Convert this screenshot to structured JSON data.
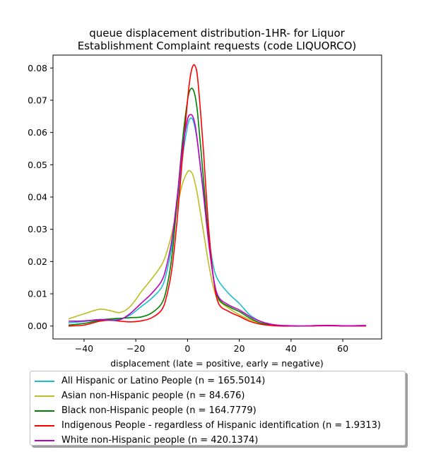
{
  "chart_data": {
    "type": "line",
    "title": "queue displacement distribution-1HR-  for Liquor\nEstablishment Complaint  requests (code LIQUORCO)",
    "xlabel": "displacement (late = positive, early = negative)",
    "ylabel": "",
    "xlim": [
      -52,
      75
    ],
    "ylim": [
      -0.004,
      0.084
    ],
    "xticks": [
      -40,
      -20,
      0,
      20,
      40,
      60
    ],
    "yticks": [
      0.0,
      0.01,
      0.02,
      0.03,
      0.04,
      0.05,
      0.06,
      0.07,
      0.08
    ],
    "grid": false,
    "legend_position": "below",
    "x": [
      -46,
      -40,
      -34,
      -30,
      -26,
      -22,
      -18,
      -14,
      -10,
      -8,
      -6,
      -4,
      -2,
      0,
      1,
      2,
      3,
      4,
      6,
      8,
      10,
      12,
      16,
      20,
      24,
      28,
      32,
      36,
      40,
      44,
      48,
      52,
      56,
      60,
      64,
      69
    ],
    "series": [
      {
        "name": "All Hispanic or Latino People (n = 165.5014)",
        "color": "#17becf",
        "values": [
          0.001,
          0.0014,
          0.002,
          0.0021,
          0.0022,
          0.0035,
          0.006,
          0.0085,
          0.012,
          0.017,
          0.025,
          0.038,
          0.052,
          0.062,
          0.0643,
          0.064,
          0.061,
          0.056,
          0.043,
          0.029,
          0.0185,
          0.014,
          0.01,
          0.007,
          0.0035,
          0.0015,
          0.0006,
          0.0002,
          0.0001,
          0.0,
          0.0001,
          0.0002,
          0.0002,
          0.0001,
          0.0001,
          0.0002
        ]
      },
      {
        "name": "Asian non-Hispanic people (n = 84.676)",
        "color": "#bcbd22",
        "values": [
          0.0022,
          0.0038,
          0.0052,
          0.0048,
          0.0042,
          0.0062,
          0.0105,
          0.0145,
          0.019,
          0.023,
          0.029,
          0.037,
          0.044,
          0.0478,
          0.048,
          0.047,
          0.044,
          0.04,
          0.03,
          0.02,
          0.012,
          0.008,
          0.0055,
          0.0035,
          0.002,
          0.001,
          0.0005,
          0.0002,
          0.0001,
          0.0,
          0.0001,
          0.0002,
          0.0002,
          0.0001,
          0.0001,
          0.0002
        ]
      },
      {
        "name": "Black non-Hispanic people (n = 164.7779)",
        "color": "#008000",
        "values": [
          0.0003,
          0.0008,
          0.0018,
          0.0022,
          0.0024,
          0.0026,
          0.0028,
          0.004,
          0.007,
          0.012,
          0.022,
          0.039,
          0.057,
          0.07,
          0.0732,
          0.0735,
          0.071,
          0.065,
          0.047,
          0.028,
          0.015,
          0.0085,
          0.006,
          0.0045,
          0.0025,
          0.001,
          0.0004,
          0.0001,
          0.0,
          0.0,
          0.0001,
          0.0001,
          0.0001,
          0.0001,
          0.0001,
          0.0001
        ]
      },
      {
        "name": "Indigenous People - regardless of Hispanic identification (n = 1.9313)",
        "color": "#ff0000",
        "values": [
          0.0,
          0.0003,
          0.0015,
          0.0018,
          0.0015,
          0.0013,
          0.0016,
          0.0025,
          0.005,
          0.0095,
          0.018,
          0.033,
          0.052,
          0.07,
          0.077,
          0.0805,
          0.0805,
          0.076,
          0.056,
          0.032,
          0.015,
          0.007,
          0.0045,
          0.003,
          0.0015,
          0.0006,
          0.0002,
          0.0,
          0.0,
          0.0,
          0.0,
          0.0001,
          0.0001,
          0.0,
          0.0,
          0.0
        ]
      },
      {
        "name": "White non-Hispanic people (n = 420.1374)",
        "color": "#bf00bf",
        "values": [
          0.0015,
          0.0016,
          0.002,
          0.0018,
          0.002,
          0.004,
          0.007,
          0.01,
          0.014,
          0.019,
          0.027,
          0.04,
          0.055,
          0.064,
          0.0655,
          0.065,
          0.062,
          0.056,
          0.042,
          0.027,
          0.015,
          0.009,
          0.0065,
          0.005,
          0.003,
          0.0015,
          0.0006,
          0.0002,
          0.0001,
          0.0,
          0.0001,
          0.0002,
          0.0002,
          0.0001,
          0.0001,
          0.0002
        ]
      }
    ]
  }
}
